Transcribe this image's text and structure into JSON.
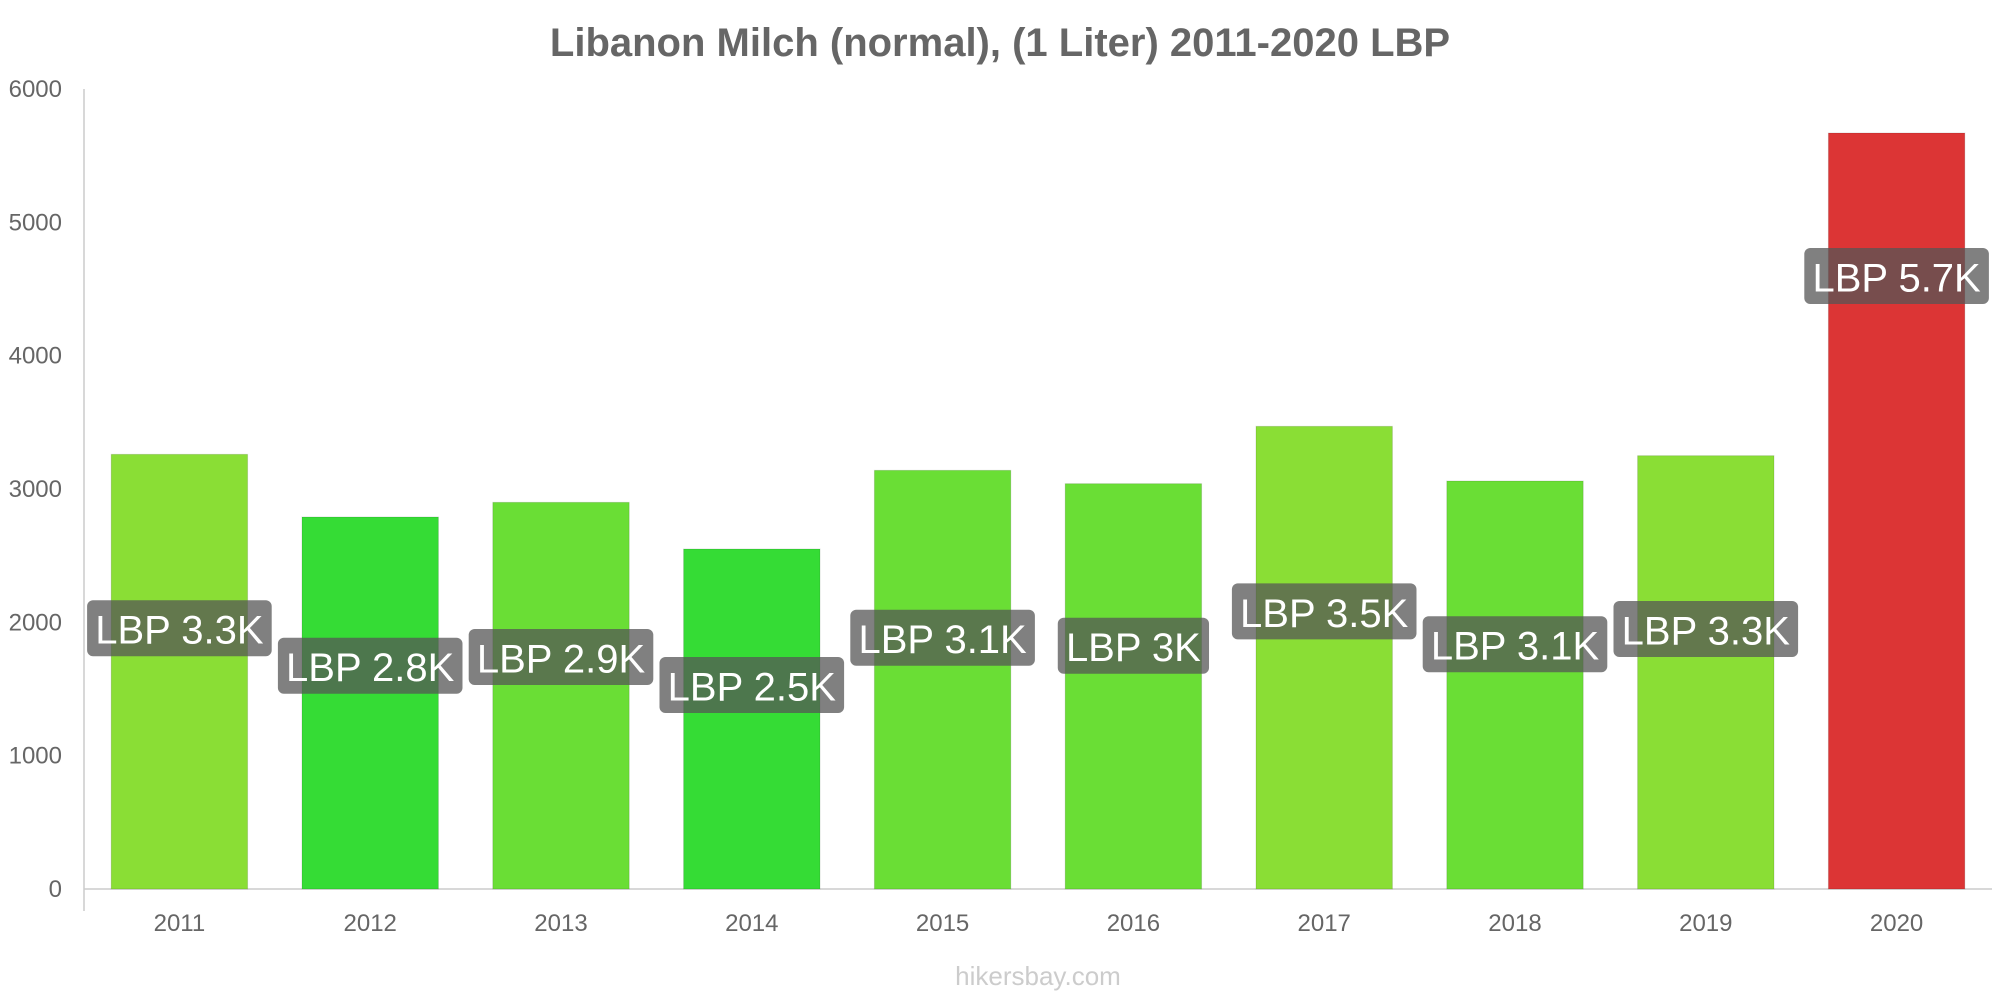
{
  "chart_data": {
    "type": "bar",
    "title": "Libanon Milch (normal), (1 Liter) 2011-2020 LBP",
    "xlabel": "",
    "ylabel": "",
    "ylim": [
      0,
      6000
    ],
    "yticks": [
      0,
      1000,
      2000,
      3000,
      4000,
      5000,
      6000
    ],
    "categories": [
      "2011",
      "2012",
      "2013",
      "2014",
      "2015",
      "2016",
      "2017",
      "2018",
      "2019",
      "2020"
    ],
    "values": [
      3260,
      2790,
      2900,
      2550,
      3140,
      3040,
      3470,
      3060,
      3250,
      5670
    ],
    "data_labels": [
      "LBP 3.3K",
      "LBP 2.8K",
      "LBP 2.9K",
      "LBP 2.5K",
      "LBP 3.1K",
      "LBP 3K",
      "LBP 3.5K",
      "LBP 3.1K",
      "LBP 3.3K",
      "LBP 5.7K"
    ],
    "bar_colors": [
      "#8ade35",
      "#35dc35",
      "#6ade35",
      "#35dc35",
      "#6ade35",
      "#6ade35",
      "#8ade35",
      "#6ade35",
      "#8ade35",
      "#dc3535"
    ],
    "legend": "none",
    "grid": false
  },
  "watermark": "hikersbay.com",
  "colors": {
    "text": "#666666",
    "axis": "#cccccc",
    "label_box": "#555555",
    "watermark": "#cccccc"
  }
}
